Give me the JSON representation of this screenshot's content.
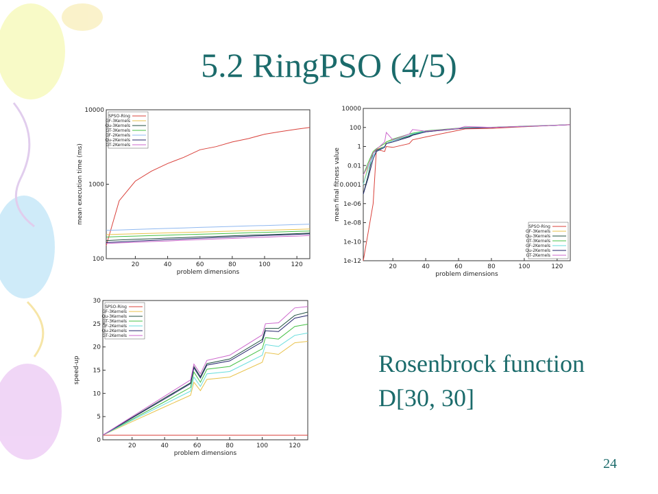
{
  "title": "5.2 RingPSO (4/5)",
  "caption": [
    "Rosenbrock function",
    "D[30, 30]"
  ],
  "page_number": "24",
  "chart_data": [
    {
      "type": "line",
      "xlabel": "problem dimensions",
      "ylabel": "mean execution time (ms)",
      "log_y": true,
      "legend": "upper left",
      "xlim": [
        2,
        128
      ],
      "xticks": [
        20,
        40,
        60,
        80,
        100,
        120
      ],
      "ylim": [
        100,
        10000
      ],
      "yticks": [
        100,
        1000,
        10000
      ],
      "x": [
        2,
        10,
        20,
        30,
        40,
        50,
        60,
        70,
        80,
        90,
        100,
        110,
        120,
        128
      ],
      "series": [
        {
          "name": "SPSO-Ring",
          "color": "#d9403a",
          "values": [
            150,
            600,
            1100,
            1500,
            1900,
            2300,
            2900,
            3200,
            3700,
            4100,
            4700,
            5100,
            5500,
            5800
          ]
        },
        {
          "name": "GF-3Kernels",
          "color": "#e8c24a",
          "values": [
            210,
            213,
            216,
            219,
            222,
            225,
            228,
            231,
            234,
            238,
            241,
            244,
            247,
            250
          ]
        },
        {
          "name": "Qu-3Kernels",
          "color": "#1f4f3f",
          "values": [
            175,
            178,
            182,
            185,
            189,
            192,
            196,
            199,
            203,
            206,
            210,
            213,
            217,
            220
          ]
        },
        {
          "name": "GT-3Kernels",
          "color": "#44c044",
          "values": [
            195,
            198,
            201,
            204,
            207,
            210,
            213,
            216,
            219,
            223,
            226,
            229,
            232,
            235
          ]
        },
        {
          "name": "GF-2Kernels",
          "color": "#8fb8f0",
          "values": [
            240,
            243,
            247,
            251,
            255,
            259,
            263,
            267,
            271,
            275,
            279,
            283,
            287,
            290
          ]
        },
        {
          "name": "Qu-2Kernels",
          "color": "#22226a",
          "values": [
            165,
            168,
            172,
            176,
            180,
            184,
            188,
            192,
            196,
            200,
            204,
            208,
            212,
            215
          ]
        },
        {
          "name": "GT-2Kernels",
          "color": "#cc66cc",
          "values": [
            160,
            163,
            166,
            170,
            173,
            177,
            180,
            184,
            187,
            191,
            194,
            198,
            201,
            205
          ]
        }
      ]
    },
    {
      "type": "line",
      "xlabel": "problem dimensions",
      "ylabel": "mean final fitness value",
      "log_y": true,
      "legend": "lower right",
      "xlim": [
        2,
        128
      ],
      "xticks": [
        20,
        40,
        60,
        80,
        100,
        120
      ],
      "ylim": [
        1e-12,
        10000
      ],
      "yticks": [
        1e-12,
        1e-10,
        {
          "value": 1e-08,
          "label": "1e-08"
        },
        {
          "value": 1e-06,
          "label": "1e-06"
        },
        0.0001,
        0.01,
        1,
        100,
        10000
      ],
      "x": [
        2,
        5,
        8,
        10,
        15,
        16,
        20,
        30,
        32,
        40,
        60,
        64,
        80,
        100,
        128
      ],
      "series": [
        {
          "name": "SPSO-Ring",
          "color": "#d9403a",
          "values": [
            1e-12,
            1e-09,
            1e-06,
            0.5,
            0.3,
            1,
            0.8,
            2,
            5,
            10,
            50,
            70,
            80,
            120,
            200
          ]
        },
        {
          "name": "GF-3Kernels",
          "color": "#e8c24a",
          "values": [
            0.0001,
            0.01,
            0.3,
            0.5,
            1,
            3,
            5,
            15,
            20,
            40,
            80,
            90,
            100,
            130,
            190
          ]
        },
        {
          "name": "Qu-3Kernels",
          "color": "#1f4f3f",
          "values": [
            1e-05,
            0.001,
            0.2,
            0.4,
            1,
            2,
            4,
            12,
            18,
            35,
            75,
            90,
            100,
            130,
            190
          ]
        },
        {
          "name": "GT-3Kernels",
          "color": "#44c044",
          "values": [
            0.001,
            0.02,
            0.3,
            0.6,
            2,
            3,
            6,
            20,
            25,
            45,
            85,
            95,
            105,
            135,
            195
          ]
        },
        {
          "name": "GF-2Kernels",
          "color": "#66dddd",
          "values": [
            0.0001,
            0.005,
            0.1,
            0.3,
            1,
            2,
            4,
            15,
            20,
            40,
            80,
            90,
            100,
            130,
            190
          ]
        },
        {
          "name": "Qu-2Kernels",
          "color": "#22226a",
          "values": [
            1e-05,
            0.0005,
            0.05,
            0.3,
            0.8,
            2,
            3,
            10,
            15,
            35,
            75,
            85,
            100,
            130,
            190
          ]
        },
        {
          "name": "GT-2Kernels",
          "color": "#cc66cc",
          "values": [
            0.001,
            0.01,
            0.2,
            0.5,
            3,
            30,
            5,
            20,
            60,
            40,
            80,
            130,
            100,
            130,
            190
          ]
        }
      ]
    },
    {
      "type": "line",
      "xlabel": "problem dimensions",
      "ylabel": "speed-up",
      "log_y": false,
      "legend": "upper left",
      "xlim": [
        2,
        128
      ],
      "xticks": [
        20,
        40,
        60,
        80,
        100,
        120
      ],
      "ylim": [
        0,
        30
      ],
      "yticks": [
        0,
        5,
        10,
        15,
        20,
        25,
        30
      ],
      "x": [
        2,
        20,
        40,
        56,
        58,
        62,
        66,
        80,
        100,
        102,
        110,
        120,
        128
      ],
      "series": [
        {
          "name": "SPSO-Ring",
          "color": "#d9403a",
          "values": [
            1,
            1,
            1,
            1,
            1,
            1,
            1,
            1,
            1,
            1,
            1,
            1,
            1
          ]
        },
        {
          "name": "GF-3Kernels",
          "color": "#e8c24a",
          "values": [
            1,
            3.9,
            7.1,
            9.6,
            12.4,
            10.6,
            13,
            13.5,
            16.7,
            18.8,
            18.4,
            20.9,
            21.2
          ]
        },
        {
          "name": "Qu-3Kernels",
          "color": "#1f4f3f",
          "values": [
            1,
            4.8,
            9,
            12.3,
            15.8,
            13.6,
            16.4,
            17.4,
            21.6,
            24,
            24,
            26.8,
            27.5
          ]
        },
        {
          "name": "GT-3Kernels",
          "color": "#44c044",
          "values": [
            1,
            4.4,
            8.2,
            11.3,
            14.6,
            12.4,
            15.2,
            15.8,
            19.6,
            22,
            21.7,
            24.4,
            24.9
          ]
        },
        {
          "name": "GF-2Kernels",
          "color": "#66dddd",
          "values": [
            1,
            4.2,
            7.7,
            10.5,
            13.5,
            11.5,
            14.2,
            14.7,
            18.2,
            20.5,
            20.1,
            22.5,
            23
          ]
        },
        {
          "name": "Qu-2Kernels",
          "color": "#22226a",
          "values": [
            1,
            4.7,
            8.8,
            12.1,
            15.5,
            13.3,
            16.1,
            17,
            21.1,
            23.5,
            23.3,
            26.2,
            26.8
          ]
        },
        {
          "name": "GT-2Kernels",
          "color": "#cc66cc",
          "values": [
            1,
            5,
            9.4,
            12.9,
            16.3,
            14.2,
            17.1,
            18.2,
            22.6,
            25,
            25.2,
            28.4,
            28.7
          ]
        }
      ]
    }
  ]
}
